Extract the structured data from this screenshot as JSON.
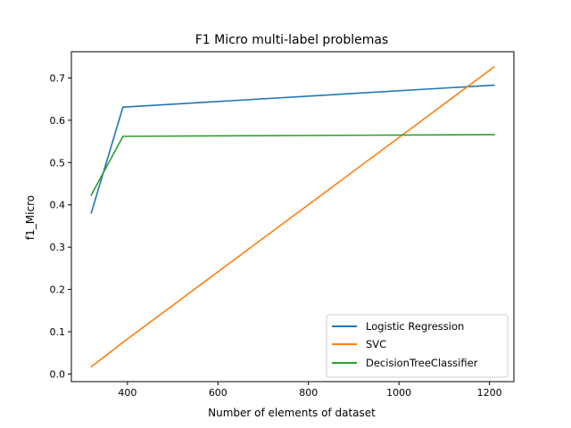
{
  "chart_data": {
    "type": "line",
    "title": "F1 Micro multi-label problemas",
    "xlabel": "Number of elements of dataset",
    "ylabel": "f1_Micro",
    "xlim": [
      276,
      1254
    ],
    "ylim": [
      -0.018,
      0.762
    ],
    "xticks": [
      400,
      600,
      800,
      1000,
      1200
    ],
    "yticks": [
      0.0,
      0.1,
      0.2,
      0.3,
      0.4,
      0.5,
      0.6,
      0.7
    ],
    "grid": false,
    "legend_position": "lower-right",
    "series": [
      {
        "name": "Logistic Regression",
        "color": "#1f77b4",
        "x": [
          320,
          390,
          1210
        ],
        "y": [
          0.381,
          0.631,
          0.683
        ]
      },
      {
        "name": "SVC",
        "color": "#ff7f0e",
        "x": [
          320,
          390,
          1210
        ],
        "y": [
          0.017,
          0.075,
          0.726
        ]
      },
      {
        "name": "DecisionTreeClassifier",
        "color": "#2ca02c",
        "x": [
          320,
          390,
          1210
        ],
        "y": [
          0.423,
          0.562,
          0.566
        ]
      }
    ]
  }
}
